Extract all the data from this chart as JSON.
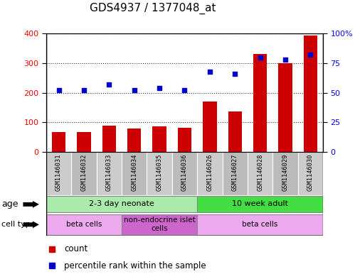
{
  "title": "GDS4937 / 1377048_at",
  "samples": [
    "GSM1146031",
    "GSM1146032",
    "GSM1146033",
    "GSM1146034",
    "GSM1146035",
    "GSM1146036",
    "GSM1146026",
    "GSM1146027",
    "GSM1146028",
    "GSM1146029",
    "GSM1146030"
  ],
  "counts": [
    68,
    68,
    88,
    80,
    86,
    82,
    170,
    138,
    330,
    300,
    393
  ],
  "percentiles": [
    52,
    52,
    57,
    52,
    54,
    52,
    68,
    66,
    80,
    78,
    82
  ],
  "ylim_left": [
    0,
    400
  ],
  "ylim_right": [
    0,
    100
  ],
  "yticks_left": [
    0,
    100,
    200,
    300,
    400
  ],
  "yticks_right": [
    0,
    25,
    50,
    75,
    100
  ],
  "ytick_labels_right": [
    "0",
    "25",
    "50",
    "75",
    "100%"
  ],
  "bar_color": "#cc0000",
  "dot_color": "#0000cc",
  "age_groups": [
    {
      "label": "2-3 day neonate",
      "start": 0,
      "end": 6,
      "color": "#aaeaaa"
    },
    {
      "label": "10 week adult",
      "start": 6,
      "end": 11,
      "color": "#44dd44"
    }
  ],
  "cell_type_groups": [
    {
      "label": "beta cells",
      "start": 0,
      "end": 3,
      "color": "#eeaaee"
    },
    {
      "label": "non-endocrine islet\ncells",
      "start": 3,
      "end": 6,
      "color": "#cc66cc"
    },
    {
      "label": "beta cells",
      "start": 6,
      "end": 11,
      "color": "#eeaaee"
    }
  ],
  "background_color": "#ffffff",
  "tick_area_color": "#cccccc",
  "tick_area_alt_color": "#bbbbbb"
}
